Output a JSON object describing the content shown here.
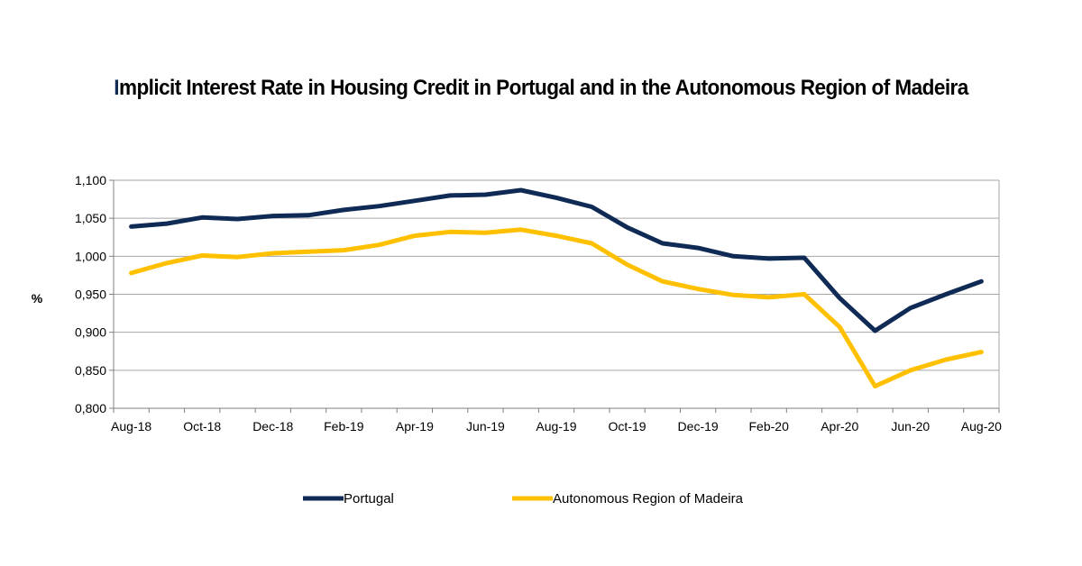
{
  "chart_data": {
    "type": "line",
    "title_first_letter": "I",
    "title_rest": "mplicit Interest Rate in Housing Credit in Portugal and in the Autonomous Region of Madeira",
    "title": "Implicit Interest Rate in Housing Credit in Portugal and in the Autonomous Region of Madeira",
    "ylabel": "%",
    "xlabel": "",
    "ylim": [
      0.8,
      1.1
    ],
    "yticks": [
      "1,100",
      "1,050",
      "1,000",
      "0,950",
      "0,900",
      "0,850",
      "0,800"
    ],
    "ytick_values": [
      1.1,
      1.05,
      1.0,
      0.95,
      0.9,
      0.85,
      0.8
    ],
    "x": [
      "Aug-18",
      "Sep-18",
      "Oct-18",
      "Nov-18",
      "Dec-18",
      "Jan-19",
      "Feb-19",
      "Mar-19",
      "Apr-19",
      "May-19",
      "Jun-19",
      "Jul-19",
      "Aug-19",
      "Sep-19",
      "Oct-19",
      "Nov-19",
      "Dec-19",
      "Jan-20",
      "Feb-20",
      "Mar-20",
      "Apr-20",
      "May-20",
      "Jun-20",
      "Jul-20",
      "Aug-20"
    ],
    "xtick_labels": [
      "Aug-18",
      "Oct-18",
      "Dec-18",
      "Feb-19",
      "Apr-19",
      "Jun-19",
      "Aug-19",
      "Oct-19",
      "Dec-19",
      "Feb-20",
      "Apr-20",
      "Jun-20",
      "Aug-20"
    ],
    "grid": "horizontal",
    "legend_position": "bottom",
    "series": [
      {
        "name": "Portugal",
        "color": "#0f2a55",
        "values": [
          1.039,
          1.043,
          1.051,
          1.049,
          1.053,
          1.054,
          1.061,
          1.066,
          1.073,
          1.08,
          1.081,
          1.087,
          1.077,
          1.065,
          1.038,
          1.017,
          1.011,
          1.0,
          0.997,
          0.998,
          0.945,
          0.902,
          0.932,
          0.95,
          0.967
        ]
      },
      {
        "name": "Autonomous Region of Madeira",
        "color": "#ffc000",
        "values": [
          0.978,
          0.991,
          1.001,
          0.999,
          1.004,
          1.006,
          1.008,
          1.015,
          1.027,
          1.032,
          1.031,
          1.035,
          1.027,
          1.017,
          0.989,
          0.967,
          0.957,
          0.949,
          0.946,
          0.95,
          0.907,
          0.829,
          0.85,
          0.864,
          0.874
        ]
      }
    ]
  }
}
